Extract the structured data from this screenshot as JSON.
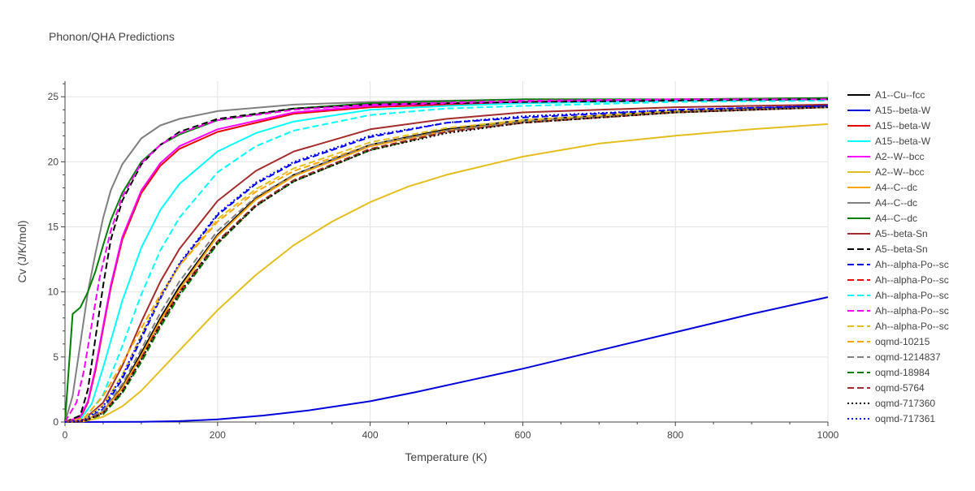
{
  "chart_data": {
    "type": "line",
    "title": "Phonon/QHA Predictions",
    "xlabel": "Temperature (K)",
    "ylabel": "Cv (J/K/mol)",
    "xlim": [
      0,
      1000
    ],
    "ylim": [
      0,
      26.2
    ],
    "xticks": [
      0,
      200,
      400,
      600,
      800,
      1000
    ],
    "yticks": [
      0,
      5,
      10,
      15,
      20,
      25
    ],
    "grid": true,
    "legend_position": "right",
    "series": [
      {
        "name": "A1--Cu--fcc",
        "color": "#000000",
        "dash": "solid",
        "x": [
          0,
          25,
          50,
          75,
          100,
          125,
          150,
          200,
          250,
          300,
          400,
          500,
          600,
          800,
          1000
        ],
        "y": [
          0,
          0.1,
          0.8,
          2.7,
          5.3,
          8.0,
          10.4,
          14.4,
          17.2,
          19.0,
          21.3,
          22.5,
          23.2,
          23.9,
          24.3
        ]
      },
      {
        "name": "A15--beta-W",
        "color": "#0000dd",
        "dash": "solid",
        "x": [
          0,
          100,
          150,
          200,
          260,
          320,
          400,
          460,
          530,
          600,
          700,
          800,
          900,
          1000
        ],
        "y": [
          0,
          0.02,
          0.07,
          0.2,
          0.5,
          0.9,
          1.6,
          2.3,
          3.2,
          4.1,
          5.5,
          6.9,
          8.3,
          9.6
        ]
      },
      {
        "name": "A15--beta-W",
        "color": "#ee0000",
        "dash": "solid",
        "x": [
          0,
          20,
          30,
          40,
          50,
          60,
          75,
          100,
          125,
          150,
          200,
          300,
          400,
          500,
          600,
          800,
          1000
        ],
        "y": [
          0,
          0.3,
          1.5,
          4.0,
          7.2,
          10.3,
          14.0,
          17.6,
          19.7,
          21.0,
          22.3,
          23.7,
          24.2,
          24.4,
          24.6,
          24.8,
          24.8
        ]
      },
      {
        "name": "A15--beta-W",
        "color": "#00ffff",
        "dash": "solid",
        "x": [
          0,
          20,
          35,
          50,
          75,
          100,
          125,
          150,
          200,
          250,
          300,
          400,
          500,
          600,
          800,
          1000
        ],
        "y": [
          0,
          0.2,
          1.4,
          4.2,
          9.3,
          13.4,
          16.3,
          18.3,
          20.8,
          22.2,
          23.1,
          24.0,
          24.3,
          24.5,
          24.7,
          24.8
        ]
      },
      {
        "name": "A2--W--bcc",
        "color": "#ff00ff",
        "dash": "solid",
        "x": [
          0,
          20,
          30,
          40,
          50,
          60,
          75,
          100,
          125,
          150,
          200,
          300,
          400,
          500,
          600,
          800,
          1000
        ],
        "y": [
          0,
          0.4,
          1.6,
          4.2,
          7.4,
          10.5,
          14.2,
          17.8,
          19.9,
          21.2,
          22.5,
          23.8,
          24.3,
          24.5,
          24.6,
          24.8,
          24.8
        ]
      },
      {
        "name": "A2--W--bcc",
        "color": "#e6be1e",
        "dash": "solid",
        "x": [
          0,
          25,
          50,
          75,
          100,
          150,
          200,
          250,
          300,
          350,
          400,
          450,
          500,
          600,
          700,
          800,
          900,
          1000
        ],
        "y": [
          0,
          0.05,
          0.4,
          1.2,
          2.4,
          5.5,
          8.6,
          11.3,
          13.6,
          15.4,
          16.9,
          18.1,
          19.0,
          20.4,
          21.4,
          22.0,
          22.5,
          22.9
        ]
      },
      {
        "name": "A4--C--dc",
        "color": "#ffa500",
        "dash": "solid",
        "x": [
          0,
          25,
          50,
          75,
          100,
          125,
          150,
          200,
          250,
          300,
          400,
          500,
          600,
          800,
          1000
        ],
        "y": [
          0,
          0.1,
          0.8,
          2.6,
          5.1,
          7.8,
          10.2,
          14.3,
          17.1,
          18.9,
          21.2,
          22.4,
          23.1,
          23.8,
          24.2
        ]
      },
      {
        "name": "A4--C--dc",
        "color": "#808080",
        "dash": "solid",
        "x": [
          0,
          10,
          20,
          30,
          40,
          50,
          60,
          75,
          100,
          125,
          150,
          200,
          300,
          400,
          600,
          800,
          1000
        ],
        "y": [
          0,
          2.0,
          6.0,
          10.0,
          13.0,
          15.7,
          17.8,
          19.8,
          21.8,
          22.8,
          23.3,
          23.9,
          24.4,
          24.6,
          24.8,
          24.8,
          24.9
        ]
      },
      {
        "name": "A4--C--dc",
        "color": "#008000",
        "dash": "solid",
        "x": [
          0,
          10,
          20,
          30,
          40,
          50,
          60,
          75,
          100,
          125,
          150,
          200,
          300,
          400,
          600,
          800,
          1000
        ],
        "y": [
          0,
          8.3,
          8.8,
          10.0,
          11.6,
          13.6,
          15.5,
          17.6,
          20.0,
          21.3,
          22.1,
          23.2,
          24.1,
          24.5,
          24.8,
          24.8,
          24.9
        ]
      },
      {
        "name": "A5--beta-Sn",
        "color": "#a52a2a",
        "dash": "solid",
        "x": [
          0,
          25,
          50,
          75,
          100,
          125,
          150,
          200,
          250,
          300,
          400,
          500,
          600,
          800,
          1000
        ],
        "y": [
          0,
          0.2,
          1.5,
          4.3,
          7.7,
          10.8,
          13.3,
          17.0,
          19.3,
          20.8,
          22.5,
          23.3,
          23.8,
          24.2,
          24.4
        ]
      },
      {
        "name": "A5--beta-Sn",
        "color": "#000000",
        "dash": "dash",
        "x": [
          0,
          20,
          30,
          40,
          50,
          60,
          75,
          100,
          125,
          150,
          200,
          300,
          400,
          600,
          800,
          1000
        ],
        "y": [
          0,
          0.5,
          2.5,
          6.5,
          10.5,
          14.0,
          17.0,
          19.8,
          21.3,
          22.3,
          23.3,
          24.1,
          24.4,
          24.6,
          24.7,
          24.8
        ]
      },
      {
        "name": "Ah--alpha-Po--sc",
        "color": "#0000ff",
        "dash": "dash",
        "x": [
          0,
          25,
          50,
          75,
          100,
          125,
          150,
          200,
          250,
          300,
          400,
          500,
          600,
          800,
          1000
        ],
        "y": [
          0,
          0.1,
          1.0,
          3.3,
          6.4,
          9.5,
          12.1,
          15.9,
          18.3,
          19.9,
          21.9,
          23.0,
          23.4,
          24.0,
          24.3
        ]
      },
      {
        "name": "Ah--alpha-Po--sc",
        "color": "#ff0000",
        "dash": "dash",
        "x": [
          0,
          25,
          50,
          75,
          100,
          125,
          150,
          200,
          250,
          300,
          400,
          500,
          600,
          800,
          1000
        ],
        "y": [
          0,
          0.08,
          0.7,
          2.3,
          4.8,
          7.4,
          9.8,
          13.7,
          16.6,
          18.5,
          20.9,
          22.3,
          23.0,
          23.8,
          24.2
        ]
      },
      {
        "name": "Ah--alpha-Po--sc",
        "color": "#00ffff",
        "dash": "dash",
        "x": [
          0,
          25,
          50,
          75,
          100,
          125,
          150,
          200,
          250,
          300,
          400,
          500,
          600,
          800,
          1000
        ],
        "y": [
          0,
          0.2,
          2.1,
          5.8,
          9.8,
          13.2,
          15.7,
          19.2,
          21.2,
          22.4,
          23.6,
          24.1,
          24.3,
          24.6,
          24.7
        ]
      },
      {
        "name": "Ah--alpha-Po--sc",
        "color": "#ff00ff",
        "dash": "dash",
        "x": [
          0,
          15,
          25,
          35,
          45,
          60,
          75,
          100,
          125,
          150,
          200,
          300,
          400,
          600,
          800,
          1000
        ],
        "y": [
          0,
          1.5,
          4.0,
          7.5,
          11.0,
          14.7,
          17.3,
          19.9,
          21.3,
          22.2,
          23.2,
          24.0,
          24.4,
          24.7,
          24.8,
          24.8
        ]
      },
      {
        "name": "Ah--alpha-Po--sc",
        "color": "#e6be1e",
        "dash": "dash",
        "x": [
          0,
          25,
          50,
          75,
          100,
          125,
          150,
          200,
          250,
          300,
          400,
          500,
          600,
          800,
          1000
        ],
        "y": [
          0,
          0.2,
          1.3,
          3.6,
          6.7,
          9.6,
          12.0,
          15.6,
          17.9,
          19.5,
          21.5,
          22.6,
          23.2,
          23.9,
          24.2
        ]
      },
      {
        "name": "oqmd-10215",
        "color": "#ffa500",
        "dash": "dash",
        "x": [
          0,
          25,
          50,
          75,
          100,
          125,
          150,
          200,
          250,
          300,
          400,
          500,
          600,
          800,
          1000
        ],
        "y": [
          0,
          0.3,
          2.0,
          4.5,
          7.2,
          9.8,
          12.0,
          15.4,
          17.7,
          19.3,
          21.3,
          22.4,
          23.1,
          23.8,
          24.2
        ]
      },
      {
        "name": "oqmd-1214837",
        "color": "#808080",
        "dash": "dash",
        "x": [
          0,
          25,
          50,
          75,
          100,
          125,
          150,
          200,
          250,
          300,
          400,
          500,
          600,
          800,
          1000
        ],
        "y": [
          0,
          0.1,
          0.9,
          2.9,
          5.6,
          8.4,
          10.8,
          14.7,
          17.3,
          19.0,
          21.3,
          22.4,
          23.1,
          23.8,
          24.2
        ]
      },
      {
        "name": "oqmd-18984",
        "color": "#008000",
        "dash": "dash",
        "x": [
          0,
          25,
          50,
          75,
          100,
          125,
          150,
          200,
          250,
          300,
          400,
          500,
          600,
          800,
          1000
        ],
        "y": [
          0,
          0.06,
          0.6,
          2.2,
          4.6,
          7.3,
          9.7,
          13.7,
          16.6,
          18.5,
          20.9,
          22.3,
          23.0,
          23.8,
          24.2
        ]
      },
      {
        "name": "oqmd-5764",
        "color": "#a52a2a",
        "dash": "dash",
        "x": [
          0,
          25,
          50,
          75,
          100,
          125,
          150,
          200,
          250,
          300,
          400,
          500,
          600,
          800,
          1000
        ],
        "y": [
          0,
          0.07,
          0.7,
          2.4,
          4.9,
          7.6,
          10.0,
          13.9,
          16.7,
          18.6,
          21.0,
          22.3,
          23.0,
          23.8,
          24.2
        ]
      },
      {
        "name": "oqmd-717360",
        "color": "#000000",
        "dash": "dot",
        "x": [
          0,
          25,
          50,
          75,
          100,
          125,
          150,
          200,
          250,
          300,
          400,
          500,
          600,
          800,
          1000
        ],
        "y": [
          0,
          0.08,
          0.7,
          2.3,
          4.8,
          7.5,
          9.9,
          13.8,
          16.6,
          18.5,
          20.9,
          22.2,
          23.0,
          23.8,
          24.2
        ]
      },
      {
        "name": "oqmd-717361",
        "color": "#0000ff",
        "dash": "dot",
        "x": [
          0,
          25,
          50,
          75,
          100,
          125,
          150,
          200,
          250,
          300,
          400,
          500,
          600,
          800,
          1000
        ],
        "y": [
          0,
          0.15,
          1.2,
          3.5,
          6.6,
          9.6,
          12.2,
          16.0,
          18.4,
          20.0,
          22.0,
          23.0,
          23.5,
          24.0,
          24.3
        ]
      }
    ]
  }
}
